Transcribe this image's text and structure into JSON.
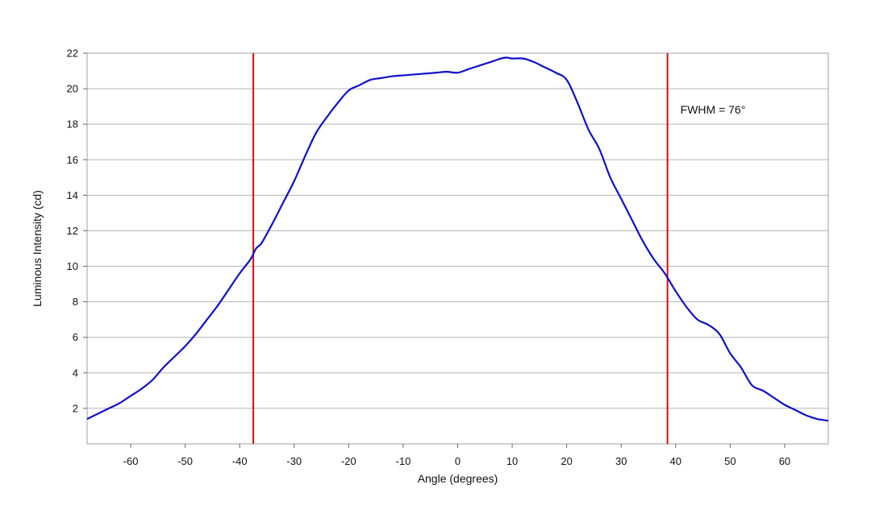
{
  "chart_data": {
    "type": "line",
    "title": "",
    "xlabel": "Angle (degrees)",
    "ylabel": "Luminous Intensity (cd)",
    "xlim": [
      -68,
      68
    ],
    "ylim": [
      0,
      22
    ],
    "xticks": [
      -60,
      -50,
      -40,
      -30,
      -20,
      -10,
      0,
      10,
      20,
      30,
      40,
      50,
      60
    ],
    "yticks": [
      2,
      4,
      6,
      8,
      10,
      12,
      14,
      16,
      18,
      20,
      22
    ],
    "grid": "horizontal",
    "legend": "none",
    "colors": {
      "series": "#1010cc",
      "markers": "#cc1010",
      "grid": "#b4b4b4",
      "frame": "#a0a0a0"
    },
    "series": [
      {
        "x": [
          -68,
          -66,
          -64,
          -62,
          -60,
          -58,
          -56,
          -54,
          -52,
          -50,
          -48,
          -46,
          -44,
          -42,
          -40,
          -38,
          -37,
          -36,
          -34,
          -32,
          -30,
          -28,
          -26,
          -24,
          -22,
          -20,
          -18,
          -16,
          -14,
          -12,
          -10,
          -8,
          -6,
          -4,
          -2,
          0,
          2,
          4,
          6,
          8,
          9,
          10,
          12,
          14,
          16,
          18,
          20,
          22,
          24,
          26,
          28,
          30,
          32,
          34,
          36,
          38,
          40,
          42,
          44,
          46,
          48,
          50,
          52,
          54,
          56,
          58,
          60,
          62,
          64,
          66,
          68
        ],
        "y": [
          1.4,
          1.7,
          2.0,
          2.3,
          2.7,
          3.1,
          3.6,
          4.3,
          4.9,
          5.5,
          6.2,
          7.0,
          7.8,
          8.7,
          9.6,
          10.4,
          11.0,
          11.3,
          12.4,
          13.6,
          14.8,
          16.2,
          17.5,
          18.4,
          19.2,
          19.9,
          20.2,
          20.5,
          20.6,
          20.7,
          20.75,
          20.8,
          20.85,
          20.9,
          20.95,
          20.9,
          21.1,
          21.3,
          21.5,
          21.7,
          21.75,
          21.7,
          21.7,
          21.5,
          21.2,
          20.9,
          20.5,
          19.2,
          17.7,
          16.6,
          15.0,
          13.8,
          12.6,
          11.4,
          10.4,
          9.6,
          8.6,
          7.7,
          7.0,
          6.7,
          6.2,
          5.1,
          4.3,
          3.3,
          3.0,
          2.6,
          2.2,
          1.9,
          1.6,
          1.4,
          1.3
        ]
      }
    ],
    "vlines": [
      -37.5,
      38.5
    ],
    "annotations": [
      {
        "text": "FWHM = 76°"
      }
    ]
  }
}
